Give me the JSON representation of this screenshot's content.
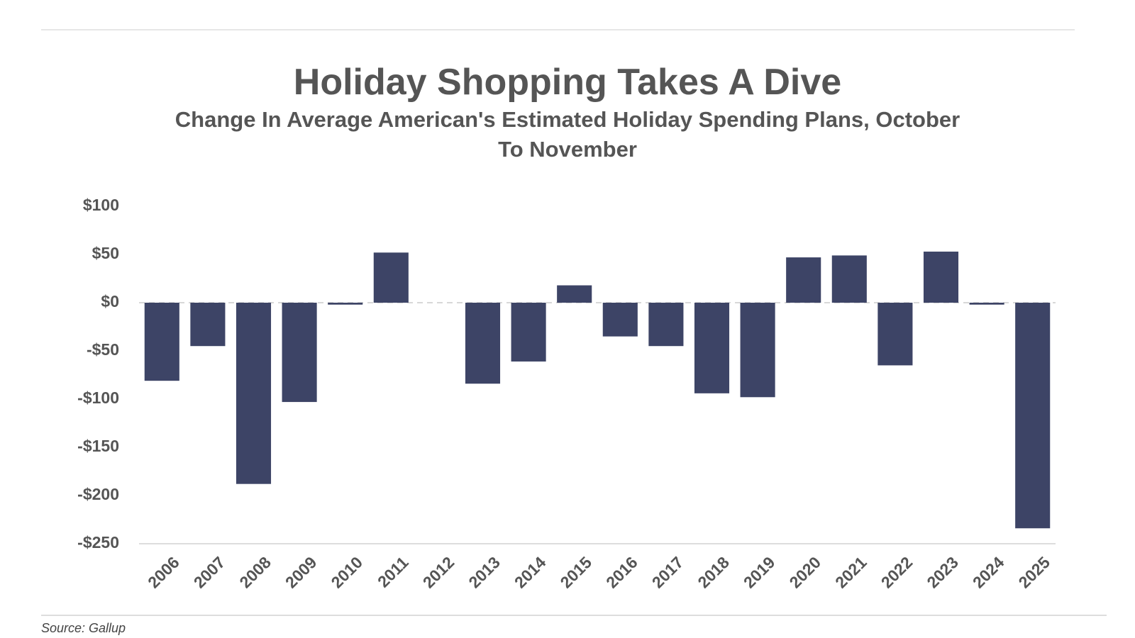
{
  "chart_data": {
    "type": "bar",
    "title": "Holiday Shopping Takes A Dive",
    "subtitle": "Change In Average American's Estimated Holiday Spending Plans, October To November",
    "source": "Source: Gallup",
    "categories": [
      "2006",
      "2007",
      "2008",
      "2009",
      "2010",
      "2011",
      "2012",
      "2013",
      "2014",
      "2015",
      "2016",
      "2017",
      "2018",
      "2019",
      "2020",
      "2021",
      "2022",
      "2023",
      "2024",
      "2025"
    ],
    "values": [
      -81,
      -45,
      -188,
      -103,
      -2,
      52,
      null,
      -84,
      -61,
      18,
      -35,
      -45,
      -94,
      -98,
      47,
      49,
      -65,
      53,
      -2,
      -234
    ],
    "color": "#3d4466",
    "ylim": [
      -250,
      100
    ],
    "yticks": [
      {
        "value": -250,
        "label": "-$250"
      },
      {
        "value": -200,
        "label": "-$200"
      },
      {
        "value": -150,
        "label": "-$150"
      },
      {
        "value": -100,
        "label": "-$100"
      },
      {
        "value": -50,
        "label": "-$50"
      },
      {
        "value": 0,
        "label": "$0"
      },
      {
        "value": 50,
        "label": "$50"
      },
      {
        "value": 100,
        "label": "$100"
      }
    ],
    "grid": false
  }
}
